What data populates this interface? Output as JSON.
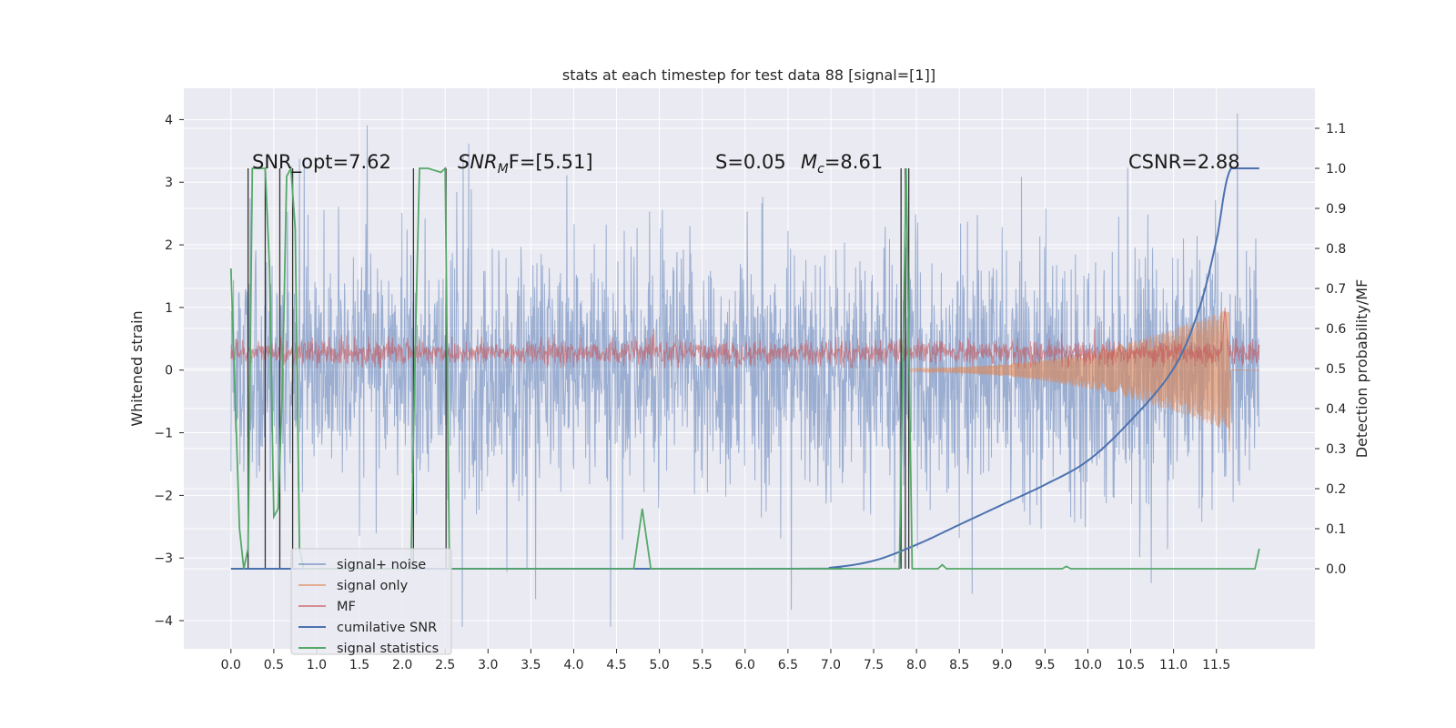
{
  "chart_data": {
    "type": "line",
    "title": "stats at each timestep for test data 88 [signal=[1]]",
    "xlabel": "",
    "ylabel": "Whitened strain",
    "y2label": "Detection probability/MF",
    "xlim": [
      -0.55,
      12.65
    ],
    "ylim": [
      -4.45,
      4.5
    ],
    "y2lim": [
      -0.2,
      1.2
    ],
    "x_ticks": [
      "0.0",
      "0.5",
      "1.0",
      "1.5",
      "2.0",
      "2.5",
      "3.0",
      "3.5",
      "4.0",
      "4.5",
      "5.0",
      "5.5",
      "6.0",
      "6.5",
      "7.0",
      "7.5",
      "8.0",
      "8.5",
      "9.0",
      "9.5",
      "10.0",
      "10.5",
      "11.0",
      "11.5"
    ],
    "y_ticks": [
      "4",
      "3",
      "2",
      "1",
      "0",
      "−1",
      "−2",
      "−3",
      "−4"
    ],
    "y2_ticks": [
      "1.1",
      "1.0",
      "0.9",
      "0.8",
      "0.7",
      "0.6",
      "0.5",
      "0.4",
      "0.3",
      "0.2",
      "0.1",
      "0.0"
    ],
    "grid": true,
    "legend_position": "lower-left",
    "colors": {
      "plot_bg": "#eaeaf2",
      "grid": "#ffffff",
      "noise": "#4c72b0",
      "signal": "#dd8452",
      "mf": "#c44e52",
      "csnr": "#4c72b0",
      "stats": "#55a868",
      "vlines": "#333333"
    },
    "annotations": [
      {
        "id": "snr-opt",
        "text": "SNR_opt=7.62"
      },
      {
        "id": "snr-mf",
        "text": "SNR",
        "sub": "M",
        "suffix": "F=[5.51]"
      },
      {
        "id": "s-value",
        "text": "S=0.05"
      },
      {
        "id": "chirp-mass",
        "text": "M",
        "sub": "c",
        "suffix": "=8.61"
      },
      {
        "id": "csnr",
        "text": "CSNR=2.88"
      }
    ],
    "series": [
      {
        "name": "signal+ noise",
        "axis": "left",
        "style": "noise-band",
        "x_range": [
          0,
          12
        ],
        "band_typical": [
          -1.8,
          1.8
        ],
        "band_peak": [
          -4.1,
          4.1
        ],
        "points": []
      },
      {
        "name": "signal only",
        "axis": "left",
        "style": "chirp",
        "start_x": 7.9,
        "end_x": 11.65,
        "amplitude_end": 0.95,
        "points": []
      },
      {
        "name": "MF",
        "axis": "left",
        "style": "mf-band",
        "x_range": [
          0,
          12
        ],
        "band": [
          0.05,
          0.55
        ],
        "peak": {
          "x": 11.6,
          "y": 1.0
        },
        "points": []
      },
      {
        "name": "cumilative SNR",
        "axis": "right",
        "points": [
          [
            0,
            0.0
          ],
          [
            6.5,
            0.0
          ],
          [
            7.0,
            0.003
          ],
          [
            7.5,
            0.02
          ],
          [
            8.0,
            0.06
          ],
          [
            8.5,
            0.11
          ],
          [
            9.0,
            0.16
          ],
          [
            9.5,
            0.21
          ],
          [
            10.0,
            0.27
          ],
          [
            10.5,
            0.37
          ],
          [
            11.0,
            0.5
          ],
          [
            11.3,
            0.65
          ],
          [
            11.5,
            0.82
          ],
          [
            11.67,
            1.0
          ],
          [
            12.0,
            1.0
          ]
        ]
      },
      {
        "name": "signal statistics",
        "axis": "right",
        "points": [
          [
            0,
            0.75
          ],
          [
            0.1,
            0.1
          ],
          [
            0.15,
            0.0
          ],
          [
            0.2,
            0.05
          ],
          [
            0.25,
            1.0
          ],
          [
            0.3,
            1.0
          ],
          [
            0.35,
            1.0
          ],
          [
            0.4,
            1.0
          ],
          [
            0.45,
            0.75
          ],
          [
            0.5,
            0.13
          ],
          [
            0.55,
            0.15
          ],
          [
            0.6,
            0.45
          ],
          [
            0.65,
            0.98
          ],
          [
            0.7,
            1.0
          ],
          [
            0.75,
            0.85
          ],
          [
            0.8,
            0.05
          ],
          [
            0.85,
            0.0
          ],
          [
            2.1,
            0.0
          ],
          [
            2.15,
            0.55
          ],
          [
            2.2,
            1.0
          ],
          [
            2.3,
            1.0
          ],
          [
            2.45,
            0.99
          ],
          [
            2.5,
            1.0
          ],
          [
            2.55,
            0.0
          ],
          [
            4.7,
            0.0
          ],
          [
            4.8,
            0.15
          ],
          [
            4.9,
            0.0
          ],
          [
            7.8,
            0.0
          ],
          [
            7.88,
            1.0
          ],
          [
            7.95,
            0.0
          ],
          [
            8.25,
            0.0
          ],
          [
            8.3,
            0.01
          ],
          [
            8.35,
            0.0
          ],
          [
            9.7,
            0.0
          ],
          [
            9.75,
            0.006
          ],
          [
            9.8,
            0.0
          ],
          [
            11.8,
            0.0
          ],
          [
            11.95,
            0.0
          ],
          [
            12.0,
            0.05
          ]
        ]
      }
    ],
    "vlines_x": [
      0.2,
      0.4,
      0.57,
      0.72,
      2.13,
      2.51,
      7.82,
      7.87,
      7.91
    ]
  }
}
